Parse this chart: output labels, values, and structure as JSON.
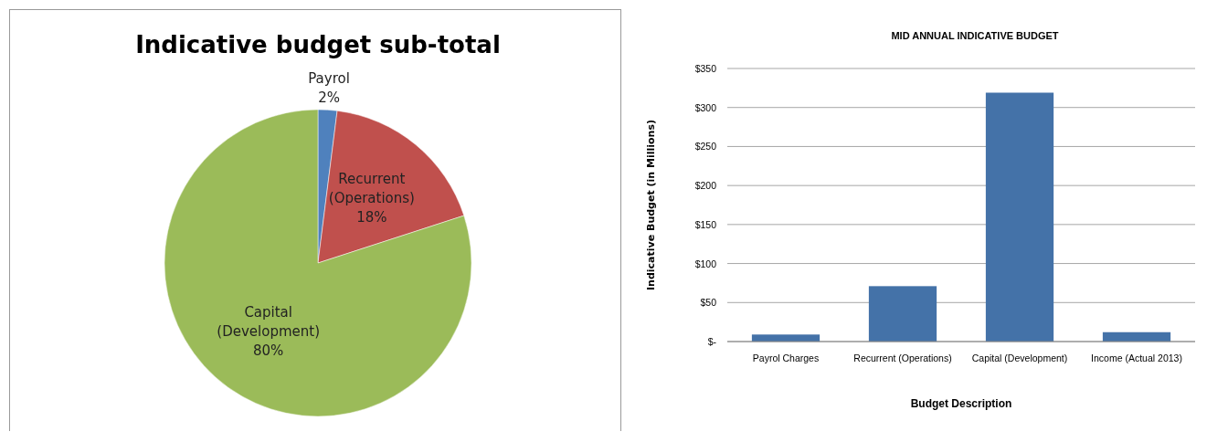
{
  "chart_data": [
    {
      "type": "pie",
      "title": "Indicative budget sub-total",
      "categories": [
        "Payrol",
        "Recurrent (Operations)",
        "Capital (Development)"
      ],
      "values": [
        2,
        18,
        80
      ],
      "colors": [
        "#4f81bd",
        "#c0504d",
        "#9bbb59"
      ],
      "value_labels": [
        "2%",
        "18%",
        "80%"
      ]
    },
    {
      "type": "bar",
      "title": "MID ANNUAL INDICATIVE BUDGET",
      "xlabel": "Budget Description",
      "ylabel": "Indicative Budget (in Millions)",
      "categories": [
        "Payrol Charges",
        "Recurrent (Operations)",
        "Capital (Development)",
        "Income (Actual 2013)"
      ],
      "series": [
        {
          "color": "#4472a8",
          "values": [
            9,
            71,
            319,
            12
          ]
        }
      ],
      "ylim": [
        0,
        350
      ],
      "yticks": [
        {
          "value": 0,
          "label": "$-"
        },
        {
          "value": 50,
          "label": "$50"
        },
        {
          "value": 100,
          "label": "$100"
        },
        {
          "value": 150,
          "label": "$150"
        },
        {
          "value": 200,
          "label": "$200"
        },
        {
          "value": 250,
          "label": "$250"
        },
        {
          "value": 300,
          "label": "$300"
        },
        {
          "value": 350,
          "label": "$350"
        }
      ],
      "grid": "y"
    }
  ]
}
